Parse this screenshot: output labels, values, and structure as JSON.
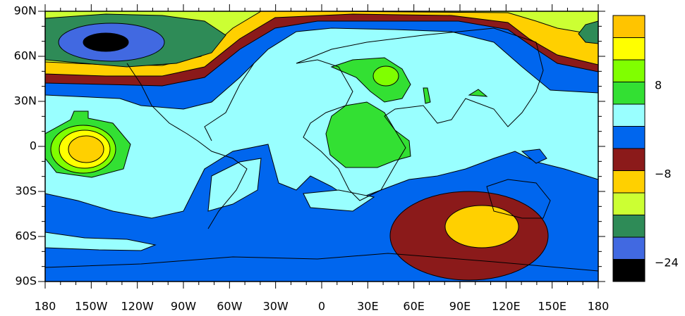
{
  "map": {
    "lat_labels": [
      "90N",
      "60N",
      "30N",
      "0",
      "30S",
      "60S",
      "90S"
    ],
    "lon_labels": [
      "180",
      "150W",
      "120W",
      "90W",
      "60W",
      "30W",
      "0",
      "30E",
      "60E",
      "90E",
      "120E",
      "150E",
      "180"
    ]
  },
  "colorbar": {
    "colors": [
      "#ffc400",
      "#ffff00",
      "#80ff00",
      "#33e033",
      "#99ffff",
      "#0066ee",
      "#8b1a1a",
      "#ffd000",
      "#ccff33",
      "#2e8b57",
      "#4169e1",
      "#000000"
    ],
    "labels": [
      {
        "text": "8",
        "boundary": 3
      },
      {
        "text": "−8",
        "boundary": 7
      },
      {
        "text": "−24",
        "boundary": 11
      }
    ]
  }
}
